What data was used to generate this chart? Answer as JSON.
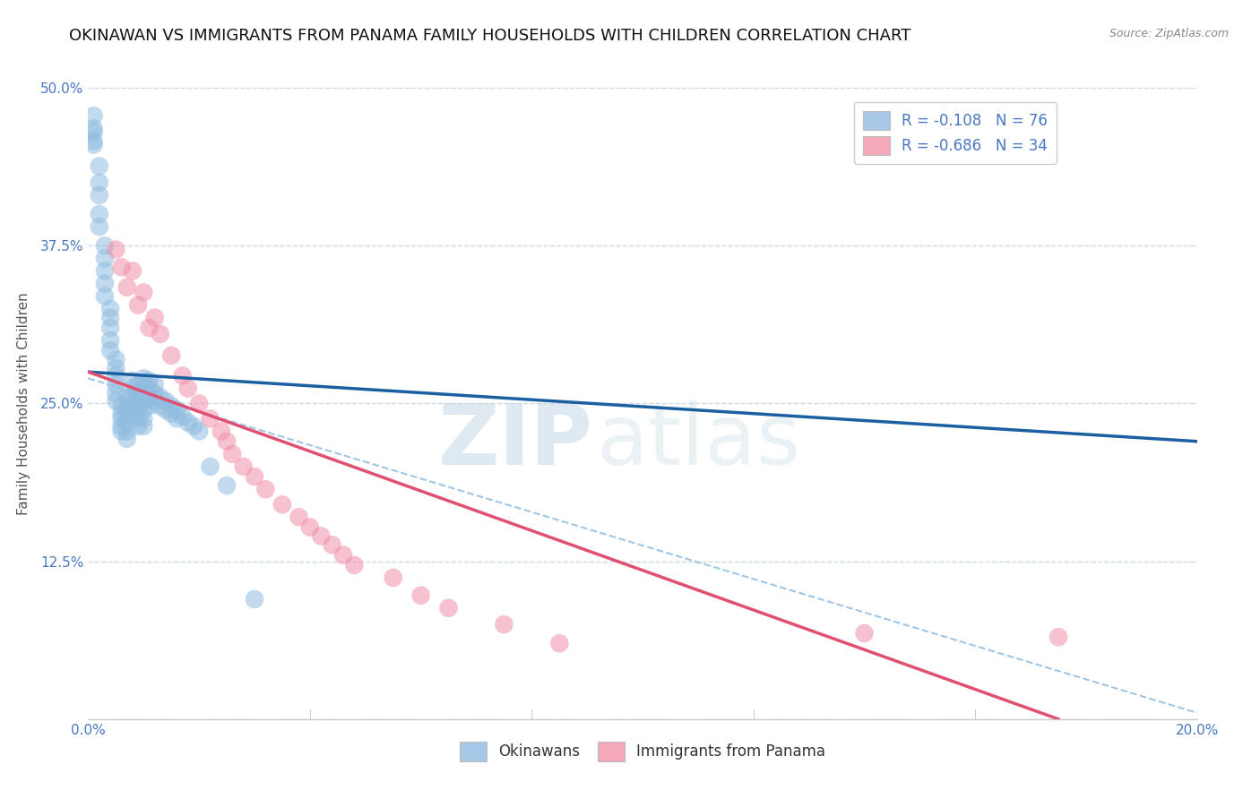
{
  "title": "OKINAWAN VS IMMIGRANTS FROM PANAMA FAMILY HOUSEHOLDS WITH CHILDREN CORRELATION CHART",
  "source": "Source: ZipAtlas.com",
  "xlabel_bottom": "Immigrants from Panama",
  "ylabel": "Family Households with Children",
  "xmin": 0.0,
  "xmax": 0.2,
  "ymin": 0.0,
  "ymax": 0.5,
  "yticks": [
    0.0,
    0.125,
    0.25,
    0.375,
    0.5
  ],
  "ytick_labels": [
    "",
    "12.5%",
    "25.0%",
    "37.5%",
    "50.0%"
  ],
  "xticks": [
    0.0,
    0.04,
    0.08,
    0.12,
    0.16,
    0.2
  ],
  "xtick_labels": [
    "0.0%",
    "",
    "",
    "",
    "",
    "20.0%"
  ],
  "legend_r_entries": [
    {
      "label": "R = -0.108   N = 76",
      "color": "#a8c8e8"
    },
    {
      "label": "R = -0.686   N = 34",
      "color": "#f4a8b8"
    }
  ],
  "legend_bottom": [
    {
      "label": "Okinawans",
      "color": "#a8c8e8"
    },
    {
      "label": "Immigrants from Panama",
      "color": "#f4a8b8"
    }
  ],
  "blue_scatter_x": [
    0.001,
    0.001,
    0.002,
    0.002,
    0.002,
    0.002,
    0.003,
    0.003,
    0.003,
    0.003,
    0.003,
    0.004,
    0.004,
    0.004,
    0.004,
    0.004,
    0.005,
    0.005,
    0.005,
    0.005,
    0.005,
    0.005,
    0.006,
    0.006,
    0.006,
    0.006,
    0.006,
    0.007,
    0.007,
    0.007,
    0.007,
    0.007,
    0.007,
    0.008,
    0.008,
    0.008,
    0.008,
    0.009,
    0.009,
    0.009,
    0.009,
    0.009,
    0.009,
    0.01,
    0.01,
    0.01,
    0.01,
    0.01,
    0.01,
    0.01,
    0.011,
    0.011,
    0.011,
    0.011,
    0.012,
    0.012,
    0.012,
    0.013,
    0.013,
    0.014,
    0.014,
    0.015,
    0.015,
    0.016,
    0.016,
    0.017,
    0.018,
    0.019,
    0.02,
    0.022,
    0.001,
    0.001,
    0.001,
    0.002,
    0.025,
    0.03
  ],
  "blue_scatter_y": [
    0.465,
    0.455,
    0.425,
    0.415,
    0.4,
    0.39,
    0.375,
    0.365,
    0.355,
    0.345,
    0.335,
    0.325,
    0.318,
    0.31,
    0.3,
    0.292,
    0.285,
    0.278,
    0.272,
    0.265,
    0.258,
    0.252,
    0.248,
    0.242,
    0.238,
    0.232,
    0.228,
    0.255,
    0.248,
    0.242,
    0.235,
    0.228,
    0.222,
    0.268,
    0.262,
    0.255,
    0.248,
    0.265,
    0.258,
    0.252,
    0.245,
    0.238,
    0.232,
    0.27,
    0.265,
    0.258,
    0.252,
    0.245,
    0.238,
    0.232,
    0.268,
    0.262,
    0.255,
    0.248,
    0.265,
    0.258,
    0.252,
    0.255,
    0.248,
    0.252,
    0.245,
    0.248,
    0.242,
    0.245,
    0.238,
    0.24,
    0.235,
    0.232,
    0.228,
    0.2,
    0.478,
    0.468,
    0.458,
    0.438,
    0.185,
    0.095
  ],
  "pink_scatter_x": [
    0.005,
    0.008,
    0.01,
    0.012,
    0.013,
    0.015,
    0.017,
    0.018,
    0.02,
    0.022,
    0.024,
    0.025,
    0.026,
    0.028,
    0.03,
    0.032,
    0.035,
    0.038,
    0.04,
    0.042,
    0.044,
    0.046,
    0.048,
    0.055,
    0.06,
    0.065,
    0.075,
    0.085,
    0.14,
    0.175,
    0.006,
    0.007,
    0.009,
    0.011
  ],
  "pink_scatter_y": [
    0.372,
    0.355,
    0.338,
    0.318,
    0.305,
    0.288,
    0.272,
    0.262,
    0.25,
    0.238,
    0.228,
    0.22,
    0.21,
    0.2,
    0.192,
    0.182,
    0.17,
    0.16,
    0.152,
    0.145,
    0.138,
    0.13,
    0.122,
    0.112,
    0.098,
    0.088,
    0.075,
    0.06,
    0.068,
    0.065,
    0.358,
    0.342,
    0.328,
    0.31
  ],
  "blue_line_x": [
    0.0,
    0.2
  ],
  "blue_line_y": [
    0.275,
    0.22
  ],
  "pink_line_x": [
    0.0,
    0.175
  ],
  "pink_line_y": [
    0.275,
    0.0
  ],
  "dashed_line_x": [
    0.0,
    0.2
  ],
  "dashed_line_y": [
    0.27,
    0.005
  ],
  "blue_color": "#90bce0",
  "pink_color": "#f090a8",
  "blue_line_color": "#1a5fa0",
  "pink_line_color": "#e05070",
  "dashed_line_color": "#90bce0",
  "watermark_zip": "ZIP",
  "watermark_atlas": "atlas",
  "background_color": "#ffffff",
  "grid_color": "#c8d4e4",
  "tick_color": "#4878c0",
  "title_fontsize": 13,
  "axis_label_fontsize": 11,
  "tick_fontsize": 11,
  "legend_fontsize": 12
}
